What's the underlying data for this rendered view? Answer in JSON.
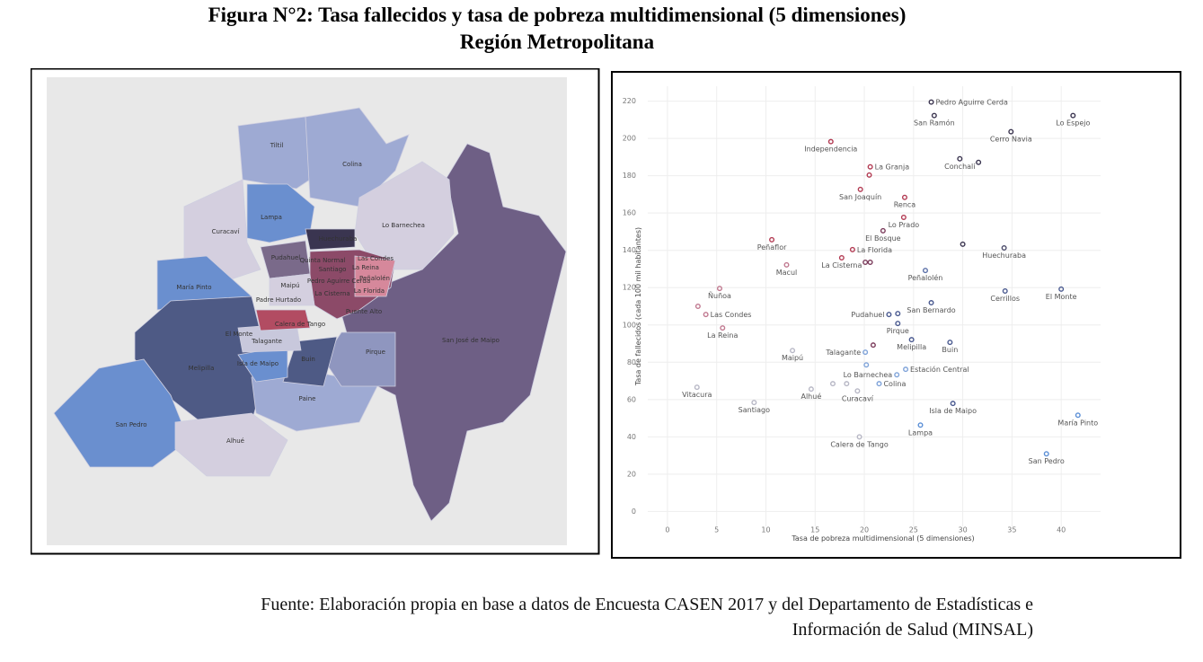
{
  "figure": {
    "title": "Figura N°2: Tasa fallecidos y tasa de pobreza multidimensional (5 dimensiones)",
    "subtitle": "Región Metropolitana"
  },
  "source": [
    "Fuente: Elaboración propia en base a datos de Encuesta CASEN 2017 y del Departamento de Estadísticas e",
    "Información de Salud (MINSAL)"
  ],
  "chart_data": [
    {
      "type": "map",
      "regions": [
        "Tiltil",
        "Colina",
        "Lampa",
        "Curacaví",
        "Lo Barnechea",
        "Huechuraba",
        "Pudahuel",
        "Quinta Normal",
        "Las Condes",
        "Santiago",
        "La Reina",
        "María Pinto",
        "Maipú",
        "Pedro Aguirre Cerda",
        "Peñalolén",
        "Padre Hurtado",
        "La Cisterna",
        "La Florida",
        "Calera de Tango",
        "Puente Alto",
        "El Monte",
        "Talagante",
        "San José de Maipo",
        "Isla de Maipo",
        "Buin",
        "Pirque",
        "Melipilla",
        "Paine",
        "San Pedro",
        "Alhué"
      ]
    },
    {
      "type": "scatter",
      "xlabel": "Tasa de pobreza multidimensional (5 dimensiones)",
      "ylabel": "Tasa de fallecidos (cada 100 mil habitantes)",
      "xlim": [
        -2,
        44
      ],
      "ylim": [
        -8,
        228
      ],
      "xticks": [
        0,
        5,
        10,
        15,
        20,
        25,
        30,
        35,
        40
      ],
      "yticks": [
        0,
        20,
        40,
        60,
        80,
        100,
        120,
        140,
        160,
        180,
        200,
        220
      ],
      "grid": true,
      "labels": [
        "Pedro Aguirre Cerda",
        "San Ramón",
        "Lo Espejo",
        "Cerro Navia",
        "Independencia",
        "Conchalí",
        null,
        "La Granja",
        null,
        "San Joaquín",
        "Renca",
        "Lo Prado",
        "El Bosque",
        "Peñaflor",
        null,
        "Huechuraba",
        "La Florida",
        "La Cisterna",
        null,
        null,
        "Macul",
        "Peñalolén",
        "Ñuñoa",
        "Cerrillos",
        "El Monte",
        "San Bernardo",
        null,
        "Las Condes",
        "Pudahuel",
        null,
        "Pirque",
        "La Reina",
        "Melipilla",
        null,
        "Buin",
        "Maipú",
        "Talagante",
        null,
        "Estación Central",
        "Lo Barnechea",
        "Colina",
        "Vitacura",
        "Alhué",
        null,
        null,
        "Curacaví",
        "Isla de Maipo",
        "Santiago",
        "María Pinto",
        "Lampa",
        "Calera de Tango",
        "San Pedro"
      ],
      "x": [
        26.8,
        27.1,
        41.2,
        34.9,
        16.6,
        29.7,
        31.6,
        20.6,
        20.5,
        19.6,
        24.1,
        24.0,
        21.9,
        10.6,
        30.0,
        34.2,
        18.8,
        17.7,
        20.1,
        20.6,
        12.1,
        26.2,
        5.3,
        34.3,
        40.0,
        26.8,
        3.1,
        3.9,
        22.5,
        23.4,
        23.4,
        5.6,
        24.8,
        20.9,
        28.7,
        12.7,
        20.1,
        20.2,
        24.2,
        23.3,
        21.5,
        3.0,
        14.6,
        16.8,
        18.2,
        19.3,
        29.0,
        8.8,
        41.7,
        25.7,
        19.5,
        38.5
      ],
      "values": [
        219.5,
        212.3,
        212.3,
        203.6,
        198.3,
        189.1,
        187.2,
        184.8,
        180.4,
        172.7,
        168.4,
        157.7,
        150.5,
        145.7,
        143.3,
        141.3,
        140.4,
        136.0,
        133.6,
        133.6,
        132.2,
        129.2,
        119.6,
        118.2,
        119.2,
        111.9,
        110.0,
        105.6,
        105.6,
        106.1,
        100.8,
        98.4,
        92.1,
        89.2,
        90.7,
        86.3,
        85.4,
        78.6,
        76.2,
        73.3,
        68.5,
        66.6,
        65.6,
        68.5,
        68.5,
        64.6,
        57.9,
        58.4,
        51.6,
        46.3,
        40.0,
        30.9
      ],
      "colors": [
        "#3b3550",
        "#3b3550",
        "#3b3550",
        "#3b3550",
        "#b23a52",
        "#3b3550",
        "#3b3550",
        "#b23a52",
        "#b23a52",
        "#b23a52",
        "#b23a52",
        "#b23a52",
        "#7a3a5a",
        "#b23a52",
        "#3b3550",
        "#4a4a6a",
        "#b23a52",
        "#b23a52",
        "#7a3a5a",
        "#7a3a5a",
        "#c0788f",
        "#5a6fa8",
        "#c0788f",
        "#4a5a90",
        "#4a5a90",
        "#4a5a90",
        "#c0788f",
        "#c0788f",
        "#4a5a90",
        "#4a5a90",
        "#4a5a90",
        "#c0788f",
        "#4a5a90",
        "#7a3a5a",
        "#4a5a90",
        "#b7b7c5",
        "#7fa3d9",
        "#7fa3d9",
        "#7fa3d9",
        "#7fa3d9",
        "#7fa3d9",
        "#b7b7c5",
        "#b7b7c5",
        "#b7b7c5",
        "#b7b7c5",
        "#b7b7c5",
        "#4a5a90",
        "#b7b7c5",
        "#5b8fd6",
        "#5b8fd6",
        "#b7b7c5",
        "#5b8fd6"
      ]
    }
  ]
}
